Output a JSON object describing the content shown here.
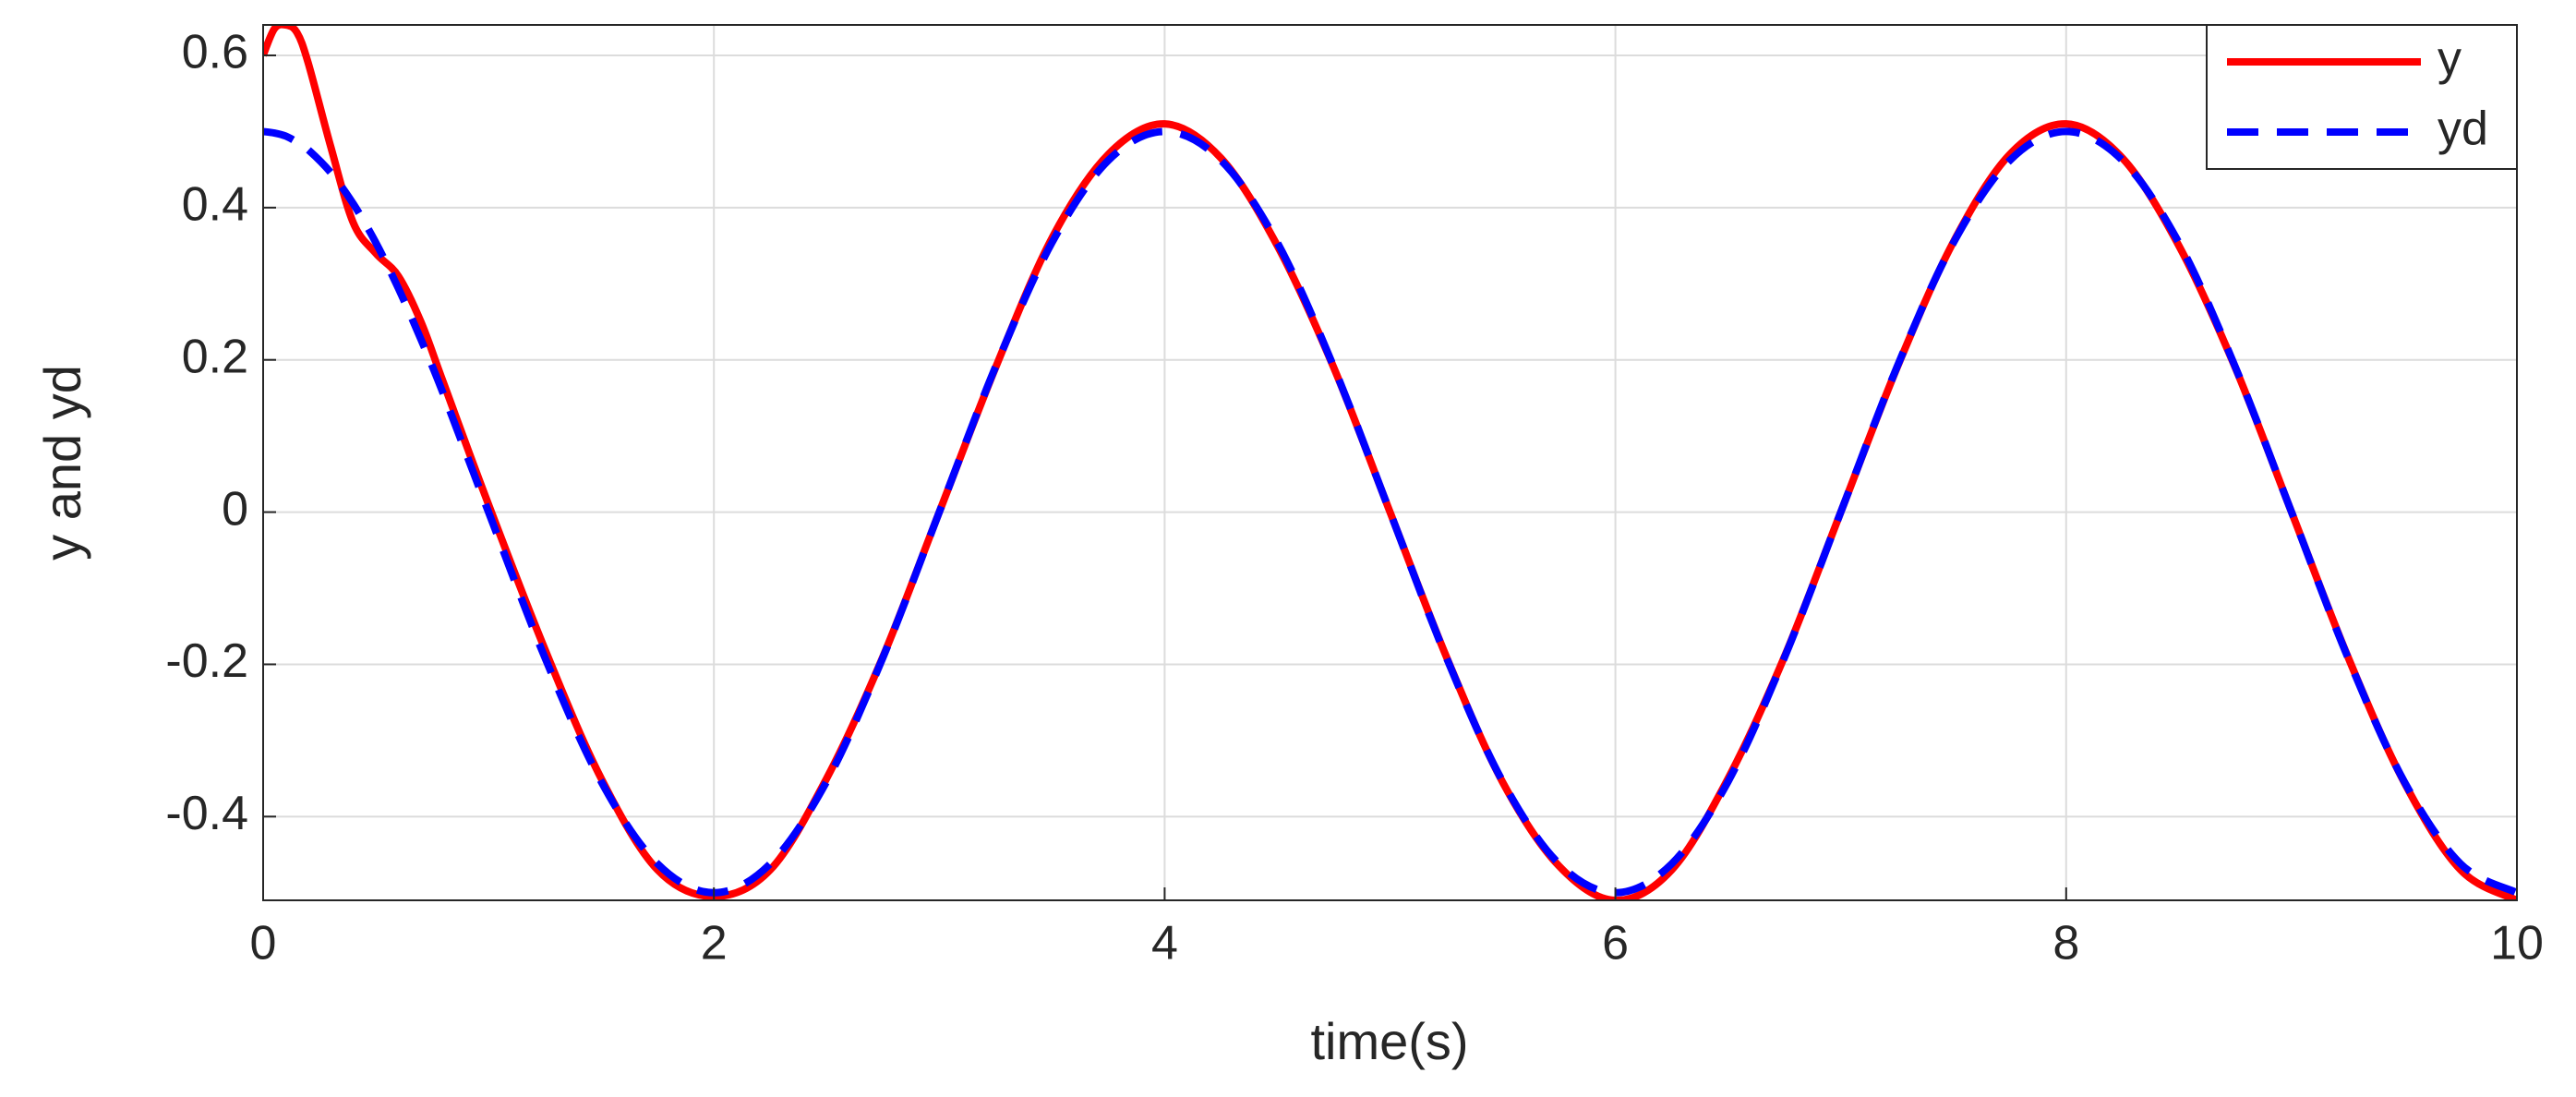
{
  "chart_data": {
    "type": "line",
    "xlabel": "time(s)",
    "ylabel": "y and yd",
    "x": [
      0,
      0.05,
      0.1,
      0.15,
      0.2,
      0.3,
      0.4,
      0.5,
      0.6,
      0.7,
      0.8,
      1,
      1.25,
      1.5,
      1.75,
      2,
      2.25,
      2.5,
      2.75,
      3,
      3.25,
      3.5,
      3.75,
      4,
      4.25,
      4.5,
      4.75,
      5,
      5.25,
      5.5,
      5.75,
      6,
      6.25,
      6.5,
      6.75,
      7,
      7.25,
      7.5,
      7.75,
      8,
      8.25,
      8.5,
      8.75,
      9,
      9.25,
      9.5,
      9.75,
      10
    ],
    "series": [
      {
        "name": "y",
        "color": "#ff0000",
        "dash": "solid",
        "values": [
          0.6,
          0.635,
          0.64,
          0.63,
          0.59,
          0.48,
          0.38,
          0.34,
          0.31,
          0.25,
          0.17,
          0.01,
          -0.18,
          -0.35,
          -0.47,
          -0.505,
          -0.47,
          -0.35,
          -0.19,
          0,
          0.19,
          0.36,
          0.47,
          0.51,
          0.465,
          0.35,
          0.19,
          0,
          -0.19,
          -0.355,
          -0.465,
          -0.51,
          -0.47,
          -0.35,
          -0.19,
          0,
          0.19,
          0.355,
          0.47,
          0.51,
          0.465,
          0.35,
          0.19,
          0,
          -0.19,
          -0.355,
          -0.47,
          -0.51
        ]
      },
      {
        "name": "yd",
        "color": "#0000ff",
        "dash": "dashed",
        "values": [
          0.5,
          0.498,
          0.494,
          0.486,
          0.476,
          0.446,
          0.405,
          0.354,
          0.294,
          0.227,
          0.155,
          0,
          -0.191,
          -0.354,
          -0.462,
          -0.5,
          -0.462,
          -0.354,
          -0.191,
          0,
          0.191,
          0.354,
          0.462,
          0.5,
          0.462,
          0.354,
          0.191,
          0,
          -0.191,
          -0.354,
          -0.462,
          -0.5,
          -0.462,
          -0.354,
          -0.191,
          0,
          0.191,
          0.354,
          0.462,
          0.5,
          0.462,
          0.354,
          0.191,
          0,
          -0.191,
          -0.354,
          -0.462,
          -0.5
        ]
      }
    ],
    "xlim": [
      0,
      10
    ],
    "xticks": [
      0,
      2,
      4,
      6,
      8,
      10
    ],
    "ylim": [
      -0.51,
      0.64
    ],
    "yticks": [
      -0.4,
      -0.2,
      0,
      0.2,
      0.4,
      0.6
    ],
    "grid": true,
    "legend": "upper right"
  }
}
